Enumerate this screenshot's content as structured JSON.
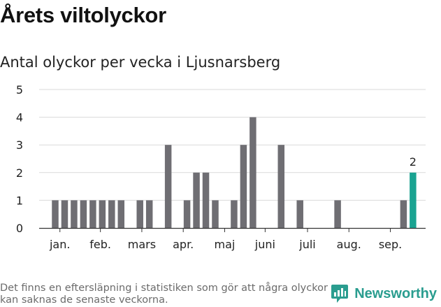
{
  "title": "Årets viltolyckor",
  "subtitle": "Antal olyckor per vecka i Ljusnarsberg",
  "footnote": "Det finns en eftersläpning i statistiken som gör att några olyckor kan saknas de senaste veckorna.",
  "brand": {
    "name": "Newsworthy",
    "icon": "newsworthy-logo-icon"
  },
  "colors": {
    "bar": "#6f6e73",
    "highlight": "#1aa391",
    "grid": "#d9d9d9",
    "axis": "#333333"
  },
  "chart_data": {
    "type": "bar",
    "title": "Antal olyckor per vecka i Ljusnarsberg",
    "xlabel": "",
    "ylabel": "",
    "ylim": [
      0,
      5
    ],
    "yticks": [
      0,
      1,
      2,
      3,
      4,
      5
    ],
    "weeks": [
      1,
      2,
      3,
      4,
      5,
      6,
      7,
      8,
      9,
      10,
      11,
      12,
      13,
      14,
      15,
      16,
      17,
      18,
      19,
      20,
      21,
      22,
      23,
      24,
      25,
      26,
      27,
      28,
      29,
      30,
      31,
      32,
      33,
      34,
      35,
      36,
      37,
      38,
      39
    ],
    "values": [
      1,
      1,
      1,
      1,
      1,
      1,
      1,
      1,
      0,
      1,
      1,
      0,
      3,
      0,
      1,
      2,
      2,
      1,
      0,
      1,
      3,
      4,
      0,
      0,
      3,
      0,
      1,
      0,
      0,
      0,
      1,
      0,
      0,
      0,
      0,
      0,
      0,
      1,
      2
    ],
    "highlight_index": 38,
    "highlight_label": "2",
    "month_labels": [
      {
        "label": "jan.",
        "week": 1.5
      },
      {
        "label": "feb.",
        "week": 5.8
      },
      {
        "label": "mars",
        "week": 10.2
      },
      {
        "label": "apr.",
        "week": 14.6
      },
      {
        "label": "maj",
        "week": 19
      },
      {
        "label": "juni",
        "week": 23.3
      },
      {
        "label": "juli",
        "week": 27.8
      },
      {
        "label": "aug.",
        "week": 32.2
      },
      {
        "label": "sep.",
        "week": 36.6
      }
    ]
  }
}
